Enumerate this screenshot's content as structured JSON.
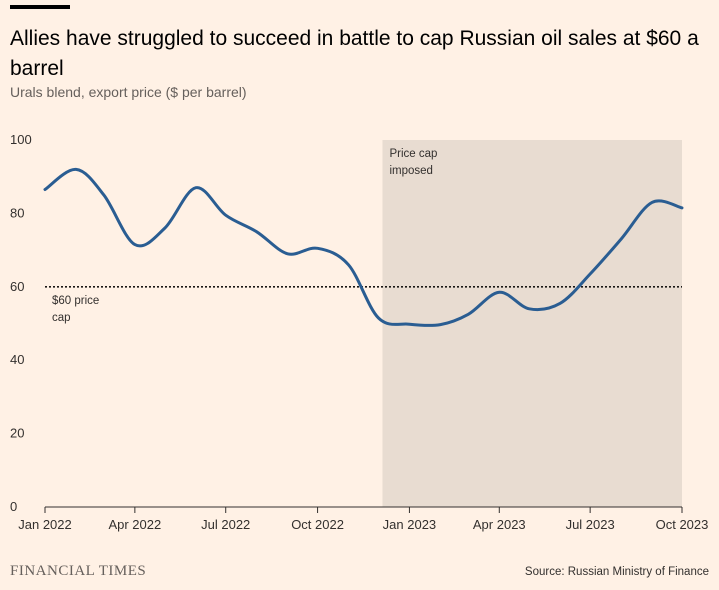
{
  "header": {
    "title": "Allies have struggled to succeed in battle to cap Russian oil sales at $60 a barrel",
    "subtitle": "Urals blend, export price ($ per barrel)"
  },
  "footer": {
    "logo": "FINANCIAL TIMES",
    "source": "Source: Russian Ministry of Finance"
  },
  "colors": {
    "background": "#fff1e5",
    "line": "#2a5d92",
    "shade": "#e8dcd1",
    "axis": "#33302e"
  },
  "chart_data": {
    "type": "line",
    "title": "Allies have struggled to succeed in battle to cap Russian oil sales at $60 a barrel",
    "subtitle": "Urals blend, export price ($ per barrel)",
    "xlabel": "",
    "ylabel": "$ per barrel",
    "ylim": [
      0,
      100
    ],
    "y_ticks": [
      0,
      20,
      40,
      60,
      80,
      100
    ],
    "x_range": [
      "2022-01-01",
      "2023-10-01"
    ],
    "x_ticks": [
      {
        "date": "2022-01-01",
        "label": "Jan 2022"
      },
      {
        "date": "2022-04-01",
        "label": "Apr 2022"
      },
      {
        "date": "2022-07-01",
        "label": "Jul 2022"
      },
      {
        "date": "2022-10-01",
        "label": "Oct 2022"
      },
      {
        "date": "2023-01-01",
        "label": "Jan 2023"
      },
      {
        "date": "2023-04-01",
        "label": "Apr 2023"
      },
      {
        "date": "2023-07-01",
        "label": "Jul 2023"
      },
      {
        "date": "2023-10-01",
        "label": "Oct 2023"
      }
    ],
    "series": [
      {
        "name": "Urals blend export price",
        "points": [
          {
            "date": "2022-01-01",
            "value": 86.5
          },
          {
            "date": "2022-02-01",
            "value": 92.0
          },
          {
            "date": "2022-03-01",
            "value": 85.0
          },
          {
            "date": "2022-04-01",
            "value": 71.5
          },
          {
            "date": "2022-05-01",
            "value": 76.0
          },
          {
            "date": "2022-06-01",
            "value": 87.0
          },
          {
            "date": "2022-07-01",
            "value": 79.5
          },
          {
            "date": "2022-08-01",
            "value": 75.0
          },
          {
            "date": "2022-09-01",
            "value": 69.0
          },
          {
            "date": "2022-10-01",
            "value": 70.5
          },
          {
            "date": "2022-11-01",
            "value": 66.0
          },
          {
            "date": "2022-12-01",
            "value": 51.5
          },
          {
            "date": "2023-01-01",
            "value": 49.8
          },
          {
            "date": "2023-02-01",
            "value": 49.7
          },
          {
            "date": "2023-03-01",
            "value": 52.5
          },
          {
            "date": "2023-04-01",
            "value": 58.5
          },
          {
            "date": "2023-05-01",
            "value": 54.0
          },
          {
            "date": "2023-06-01",
            "value": 55.5
          },
          {
            "date": "2023-07-01",
            "value": 63.5
          },
          {
            "date": "2023-08-01",
            "value": 73.0
          },
          {
            "date": "2023-09-01",
            "value": 83.0
          },
          {
            "date": "2023-10-01",
            "value": 81.5
          }
        ]
      }
    ],
    "reference_line": {
      "value": 60,
      "label_line1": "$60 price",
      "label_line2": "cap"
    },
    "shaded_region": {
      "start": "2022-12-05",
      "end": "2023-10-01",
      "label_line1": "Price cap",
      "label_line2": "imposed"
    }
  }
}
